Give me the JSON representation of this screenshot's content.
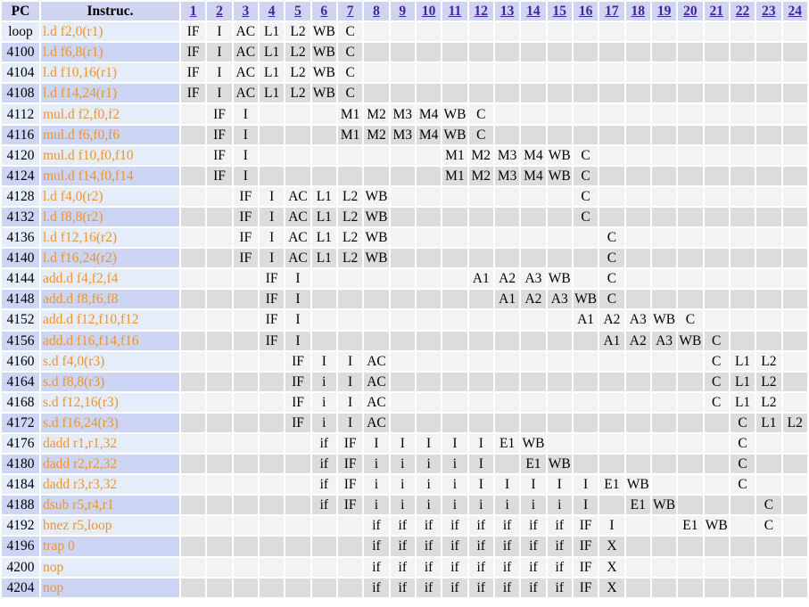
{
  "header": {
    "pc": "PC",
    "instruction": "Instruc.",
    "cycles": [
      "1",
      "2",
      "3",
      "4",
      "5",
      "6",
      "7",
      "8",
      "9",
      "10",
      "11",
      "12",
      "13",
      "14",
      "15",
      "16",
      "17",
      "18",
      "19",
      "20",
      "21",
      "22",
      "23",
      "24"
    ]
  },
  "rows": [
    {
      "pc": "loop",
      "ins": "l.d f2,0(r1)",
      "stages": {
        "1": "IF",
        "2": "I",
        "3": "AC",
        "4": "L1",
        "5": "L2",
        "6": "WB",
        "7": "C"
      }
    },
    {
      "pc": "4100",
      "ins": "l.d f6,8(r1)",
      "stages": {
        "1": "IF",
        "2": "I",
        "3": "AC",
        "4": "L1",
        "5": "L2",
        "6": "WB",
        "7": "C"
      }
    },
    {
      "pc": "4104",
      "ins": "l.d f10,16(r1)",
      "stages": {
        "1": "IF",
        "2": "I",
        "3": "AC",
        "4": "L1",
        "5": "L2",
        "6": "WB",
        "7": "C"
      }
    },
    {
      "pc": "4108",
      "ins": "l.d f14,24(r1)",
      "stages": {
        "1": "IF",
        "2": "I",
        "3": "AC",
        "4": "L1",
        "5": "L2",
        "6": "WB",
        "7": "C"
      }
    },
    {
      "pc": "4112",
      "ins": "mul.d f2,f0,f2",
      "stages": {
        "2": "IF",
        "3": "I",
        "7": "M1",
        "8": "M2",
        "9": "M3",
        "10": "M4",
        "11": "WB",
        "12": "C"
      }
    },
    {
      "pc": "4116",
      "ins": "mul.d f6,f0,f6",
      "stages": {
        "2": "IF",
        "3": "I",
        "7": "M1",
        "8": "M2",
        "9": "M3",
        "10": "M4",
        "11": "WB",
        "12": "C"
      }
    },
    {
      "pc": "4120",
      "ins": "mul.d f10,f0,f10",
      "stages": {
        "2": "IF",
        "3": "I",
        "11": "M1",
        "12": "M2",
        "13": "M3",
        "14": "M4",
        "15": "WB",
        "16": "C"
      }
    },
    {
      "pc": "4124",
      "ins": "mul.d f14,f0,f14",
      "stages": {
        "2": "IF",
        "3": "I",
        "11": "M1",
        "12": "M2",
        "13": "M3",
        "14": "M4",
        "15": "WB",
        "16": "C"
      }
    },
    {
      "pc": "4128",
      "ins": "l.d f4,0(r2)",
      "stages": {
        "3": "IF",
        "4": "I",
        "5": "AC",
        "6": "L1",
        "7": "L2",
        "8": "WB",
        "16": "C"
      }
    },
    {
      "pc": "4132",
      "ins": "l.d f8,8(r2)",
      "stages": {
        "3": "IF",
        "4": "I",
        "5": "AC",
        "6": "L1",
        "7": "L2",
        "8": "WB",
        "16": "C"
      }
    },
    {
      "pc": "4136",
      "ins": "l.d f12,16(r2)",
      "stages": {
        "3": "IF",
        "4": "I",
        "5": "AC",
        "6": "L1",
        "7": "L2",
        "8": "WB",
        "17": "C"
      }
    },
    {
      "pc": "4140",
      "ins": "l.d f16,24(r2)",
      "stages": {
        "3": "IF",
        "4": "I",
        "5": "AC",
        "6": "L1",
        "7": "L2",
        "8": "WB",
        "17": "C"
      }
    },
    {
      "pc": "4144",
      "ins": "add.d f4,f2,f4",
      "stages": {
        "4": "IF",
        "5": "I",
        "12": "A1",
        "13": "A2",
        "14": "A3",
        "15": "WB",
        "17": "C"
      }
    },
    {
      "pc": "4148",
      "ins": "add.d f8,f6,f8",
      "stages": {
        "4": "IF",
        "5": "I",
        "13": "A1",
        "14": "A2",
        "15": "A3",
        "16": "WB",
        "17": "C"
      }
    },
    {
      "pc": "4152",
      "ins": "add.d f12,f10,f12",
      "stages": {
        "4": "IF",
        "5": "I",
        "16": "A1",
        "17": "A2",
        "18": "A3",
        "19": "WB",
        "20": "C"
      }
    },
    {
      "pc": "4156",
      "ins": "add.d f16,f14,f16",
      "stages": {
        "4": "IF",
        "5": "I",
        "17": "A1",
        "18": "A2",
        "19": "A3",
        "20": "WB",
        "21": "C"
      }
    },
    {
      "pc": "4160",
      "ins": "s.d f4,0(r3)",
      "stages": {
        "5": "IF",
        "6": "I",
        "7": "I",
        "8": "AC",
        "21": "C",
        "22": "L1",
        "23": "L2"
      }
    },
    {
      "pc": "4164",
      "ins": "s.d f8,8(r3)",
      "stages": {
        "5": "IF",
        "6": "i",
        "7": "I",
        "8": "AC",
        "21": "C",
        "22": "L1",
        "23": "L2"
      }
    },
    {
      "pc": "4168",
      "ins": "s.d f12,16(r3)",
      "stages": {
        "5": "IF",
        "6": "i",
        "7": "I",
        "8": "AC",
        "21": "C",
        "22": "L1",
        "23": "L2"
      }
    },
    {
      "pc": "4172",
      "ins": "s.d f16,24(r3)",
      "stages": {
        "5": "IF",
        "6": "i",
        "7": "I",
        "8": "AC",
        "22": "C",
        "23": "L1",
        "24": "L2"
      }
    },
    {
      "pc": "4176",
      "ins": "dadd r1,r1,32",
      "stages": {
        "6": "if",
        "7": "IF",
        "8": "I",
        "9": "I",
        "10": "I",
        "11": "I",
        "12": "I",
        "13": "E1",
        "14": "WB",
        "22": "C"
      }
    },
    {
      "pc": "4180",
      "ins": "dadd r2,r2,32",
      "stages": {
        "6": "if",
        "7": "IF",
        "8": "i",
        "9": "i",
        "10": "i",
        "11": "i",
        "12": "I",
        "14": "E1",
        "15": "WB",
        "22": "C"
      }
    },
    {
      "pc": "4184",
      "ins": "dadd r3,r3,32",
      "stages": {
        "6": "if",
        "7": "IF",
        "8": "i",
        "9": "i",
        "10": "i",
        "11": "i",
        "12": "I",
        "13": "I",
        "14": "I",
        "15": "I",
        "16": "I",
        "17": "E1",
        "18": "WB",
        "22": "C"
      }
    },
    {
      "pc": "4188",
      "ins": "dsub r5,r4,r1",
      "stages": {
        "6": "if",
        "7": "IF",
        "8": "i",
        "9": "i",
        "10": "i",
        "11": "i",
        "12": "i",
        "13": "i",
        "14": "i",
        "15": "i",
        "16": "I",
        "18": "E1",
        "19": "WB",
        "23": "C"
      }
    },
    {
      "pc": "4192",
      "ins": "bnez r5,loop",
      "stages": {
        "8": "if",
        "9": "if",
        "10": "if",
        "11": "if",
        "12": "if",
        "13": "if",
        "14": "if",
        "15": "if",
        "16": "IF",
        "17": "I",
        "20": "E1",
        "21": "WB",
        "23": "C"
      }
    },
    {
      "pc": "4196",
      "ins": "trap 0",
      "stages": {
        "8": "if",
        "9": "if",
        "10": "if",
        "11": "if",
        "12": "if",
        "13": "if",
        "14": "if",
        "15": "if",
        "16": "IF",
        "17": "X"
      }
    },
    {
      "pc": "4200",
      "ins": "nop",
      "stages": {
        "8": "if",
        "9": "if",
        "10": "if",
        "11": "if",
        "12": "if",
        "13": "if",
        "14": "if",
        "15": "if",
        "16": "IF",
        "17": "X"
      }
    },
    {
      "pc": "4204",
      "ins": "nop",
      "stages": {
        "8": "if",
        "9": "if",
        "10": "if",
        "11": "if",
        "12": "if",
        "13": "if",
        "14": "if",
        "15": "if",
        "16": "IF",
        "17": "X"
      }
    }
  ]
}
